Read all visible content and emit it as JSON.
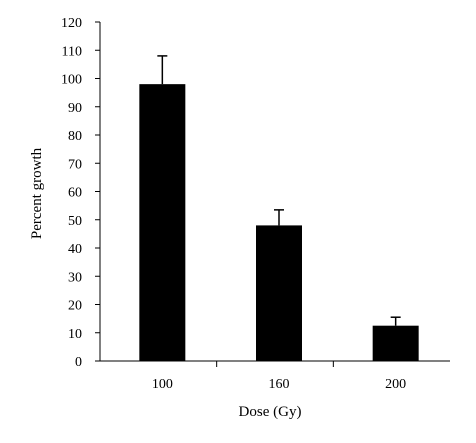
{
  "chart_data": {
    "type": "bar",
    "title": "",
    "xlabel": "Dose (Gy)",
    "ylabel": "Percent growth",
    "categories": [
      "100",
      "160",
      "200"
    ],
    "values": [
      98,
      48,
      12.5
    ],
    "error_upper": [
      10,
      5.5,
      3
    ],
    "ylim": [
      0,
      120
    ],
    "yticks": [
      "0",
      "10",
      "20",
      "30",
      "40",
      "50",
      "60",
      "70",
      "80",
      "90",
      "100",
      "110",
      "120"
    ],
    "grid": false,
    "legend": "none",
    "bar_color": "#000000"
  }
}
